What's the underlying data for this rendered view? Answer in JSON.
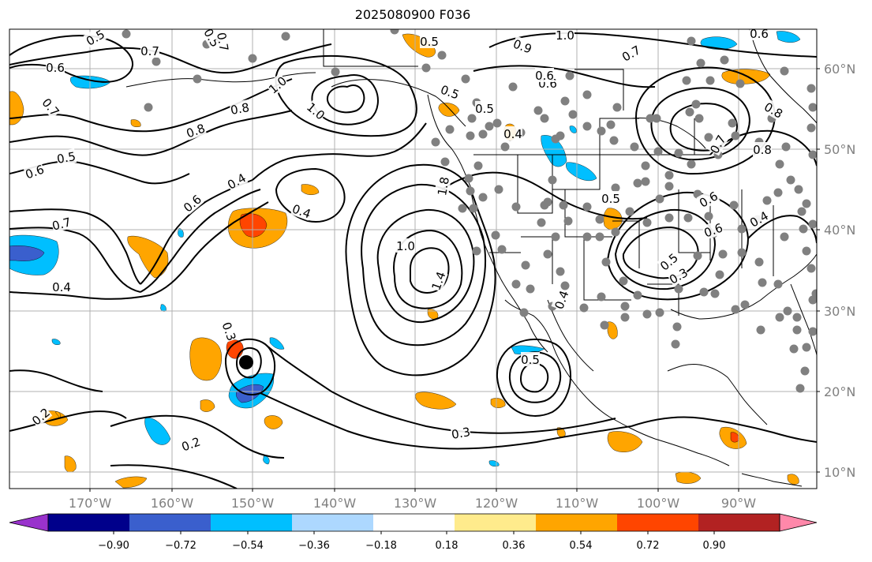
{
  "title": "2025080900 F036",
  "map": {
    "projection": "PlateCarree",
    "lon_range": [
      -180,
      -80
    ],
    "lat_range": [
      8,
      65
    ],
    "lat_ticks": [
      "10°N",
      "20°N",
      "30°N",
      "40°N",
      "50°N",
      "60°N"
    ],
    "lon_ticks": [
      "170°W",
      "160°W",
      "150°W",
      "140°W",
      "130°W",
      "120°W",
      "110°W",
      "100°W",
      "90°W"
    ],
    "marker": "black-dot-near-24N-151W"
  },
  "colorbar": {
    "ticks": [
      "−0.90",
      "−0.72",
      "−0.54",
      "−0.36",
      "−0.18",
      "0.18",
      "0.36",
      "0.54",
      "0.72",
      "0.90"
    ],
    "colors": [
      "#9932CC",
      "#00008B",
      "#3A5FCD",
      "#00BFFF",
      "#ADD8FF",
      "#FFFFFF",
      "#FFEB8C",
      "#FFA500",
      "#FF4500",
      "#B22222",
      "#FF88AA"
    ]
  },
  "contour_labels": [
    "0.5",
    "0.7",
    "0.5",
    "0.6",
    "1.0",
    "0.7",
    "0.8",
    "0.9",
    "1.0",
    "0.5",
    "0.8",
    "0.5",
    "0.6",
    "0.7",
    "0.6",
    "0.6",
    "0.5",
    "1.0",
    "0.7",
    "0.5",
    "0.6",
    "0.4",
    "0.8",
    "0.8",
    "0.7",
    "0.4",
    "0.6",
    "0.5",
    "0.6",
    "0.4",
    "0.6",
    "0.4",
    "0.7",
    "0.4",
    "1.8",
    "1.0",
    "1.4",
    "0.3",
    "0.5",
    "0.5",
    "0.3",
    "0.2",
    "0.2",
    "0.3",
    "0.4"
  ]
}
